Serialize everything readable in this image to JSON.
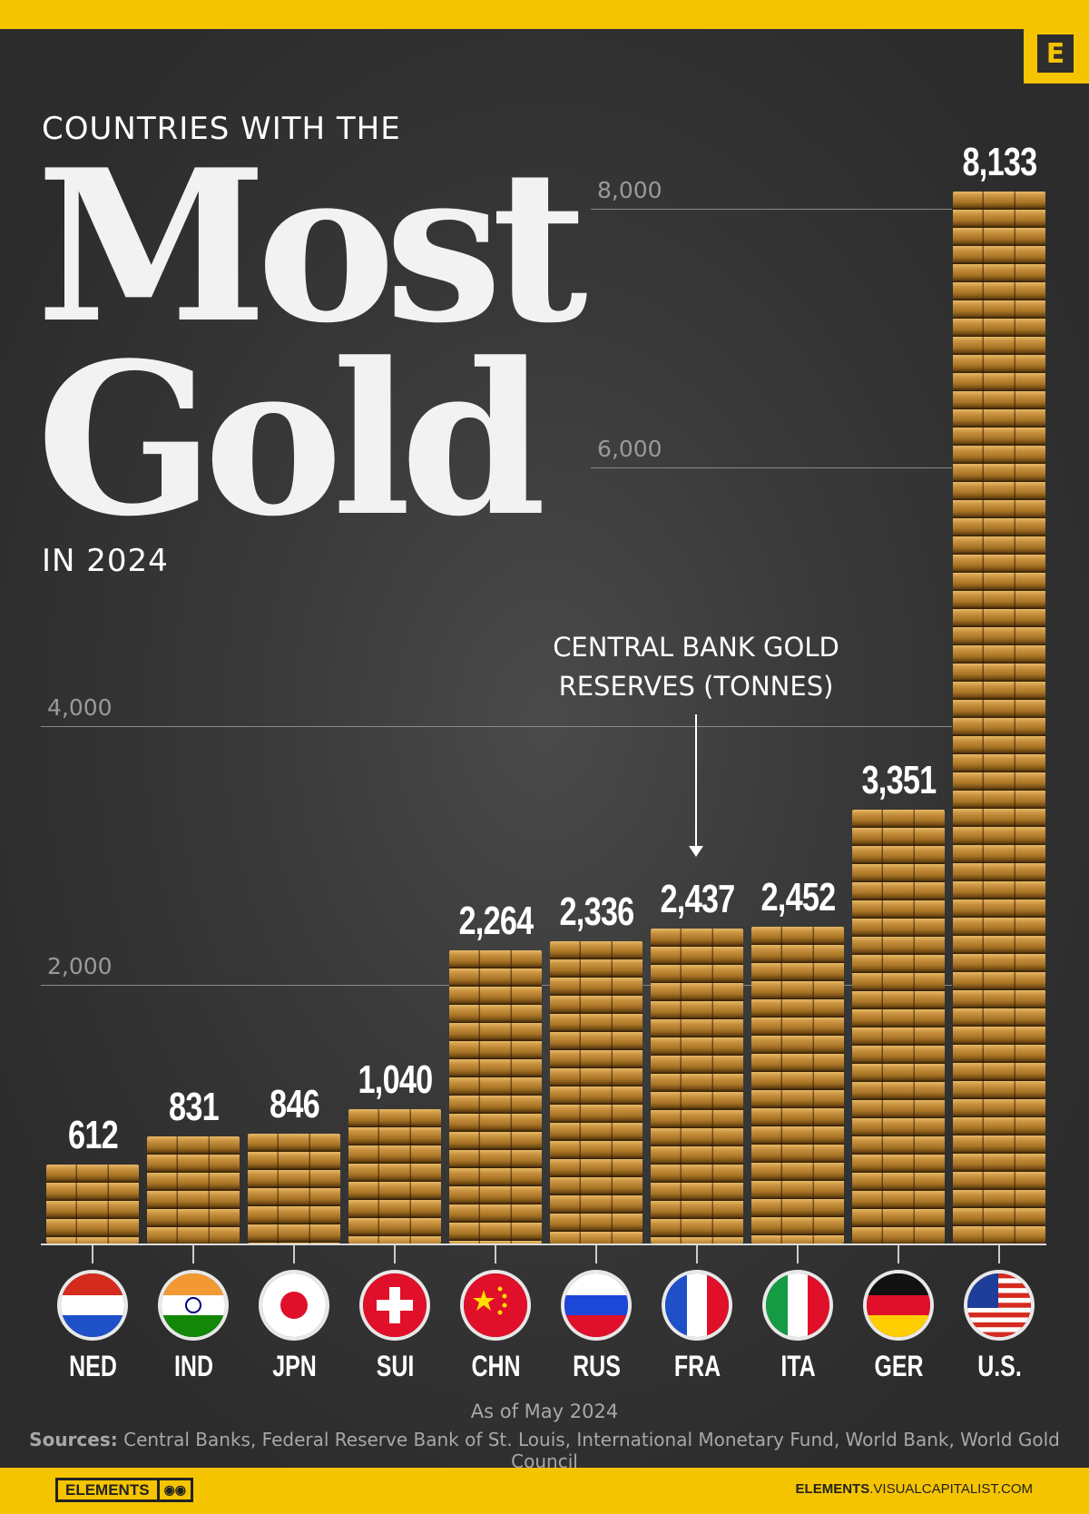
{
  "brand": {
    "logo_letter": "E",
    "footer_logo": "ELEMENTS",
    "footer_url_bold": "ELEMENTS",
    "footer_url_rest": ".VISUALCAPITALIST.COM",
    "colors": {
      "brand_yellow": "#f5c400",
      "background": "#333333",
      "gold": "#c99240"
    }
  },
  "title": {
    "kicker": "COUNTRIES WITH THE",
    "line1": "Most",
    "line2": "Gold",
    "year": "IN 2024"
  },
  "annotation": {
    "line1": "CENTRAL BANK GOLD",
    "line2": "RESERVES (TONNES)"
  },
  "footer": {
    "as_of": "As of May 2024",
    "sources_label": "Sources:",
    "sources": "Central Banks, Federal Reserve Bank of St. Louis, International Monetary Fund, World Bank, World Gold Council"
  },
  "chart_data": {
    "type": "bar",
    "title": "Countries with the Most Gold in 2024",
    "ylabel": "Central Bank Gold Reserves (Tonnes)",
    "ylim": [
      0,
      8133
    ],
    "grid": true,
    "yticks": [
      {
        "value": 2000,
        "label": "2,000"
      },
      {
        "value": 4000,
        "label": "4,000"
      },
      {
        "value": 6000,
        "label": "6,000"
      },
      {
        "value": 8000,
        "label": "8,000"
      }
    ],
    "categories": [
      "NED",
      "IND",
      "JPN",
      "SUI",
      "CHN",
      "RUS",
      "FRA",
      "ITA",
      "GER",
      "U.S."
    ],
    "values": [
      612,
      831,
      846,
      1040,
      2264,
      2336,
      2437,
      2452,
      3351,
      8133
    ],
    "value_labels": [
      "612",
      "831",
      "846",
      "1,040",
      "2,264",
      "2,336",
      "2,437",
      "2,452",
      "3,351",
      "8,133"
    ],
    "flags": [
      "netherlands-flag",
      "india-flag",
      "japan-flag",
      "switzerland-flag",
      "china-flag",
      "russia-flag",
      "france-flag",
      "italy-flag",
      "germany-flag",
      "usa-flag"
    ]
  }
}
